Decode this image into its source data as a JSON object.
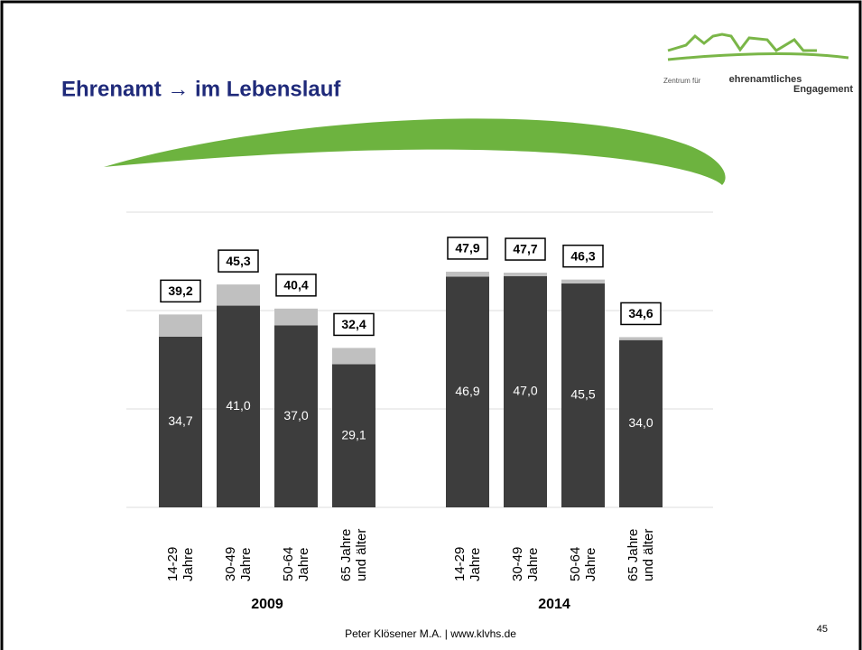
{
  "chart_data": {
    "type": "stacked-bar",
    "title": "Ehrenamt → im Lebenslauf",
    "groups": [
      "2009",
      "2014"
    ],
    "categories": [
      "14-29 Jahre",
      "30-49 Jahre",
      "50-64 Jahre",
      "65 Jahre und älter",
      "14-29 Jahre",
      "30-49 Jahre",
      "50-64 Jahre",
      "65 Jahre und älter"
    ],
    "series": [
      {
        "color": "#3d3d3d",
        "values": [
          34.7,
          41.0,
          37.0,
          29.1,
          46.9,
          47.0,
          45.5,
          34.0
        ],
        "value_labels": [
          "34,7",
          "41,0",
          "37,0",
          "29,1",
          "46,9",
          "47,0",
          "45,5",
          "34,0"
        ]
      },
      {
        "color": "#c0c0c0",
        "values": [
          4.5,
          4.3,
          3.4,
          3.3,
          1.0,
          0.7,
          0.8,
          0.6
        ]
      }
    ],
    "totals": {
      "values": [
        39.2,
        45.3,
        40.4,
        32.4,
        47.9,
        47.7,
        46.3,
        34.6
      ],
      "value_labels": [
        "39,2",
        "45,3",
        "40,4",
        "32,4",
        "47,9",
        "47,7",
        "46,3",
        "34,6"
      ]
    },
    "ylim": [
      0,
      60
    ],
    "yticks": [
      0,
      20,
      40,
      60
    ],
    "grid": true
  },
  "logo": {
    "line1": "Zentrum für",
    "line2": "ehrenamtliches",
    "line3": "Engagement"
  },
  "footer": "Peter Klösener M.A. | www.klvhs.de",
  "page_number": "45"
}
